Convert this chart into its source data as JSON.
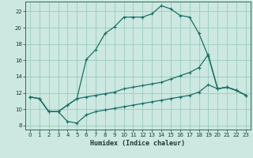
{
  "title": "",
  "xlabel": "Humidex (Indice chaleur)",
  "ylabel": "",
  "background_color": "#cce8e0",
  "grid_color": "#99ccbb",
  "line_color": "#1a7068",
  "xlim": [
    -0.5,
    23.5
  ],
  "ylim": [
    7.5,
    23.2
  ],
  "xticks": [
    0,
    1,
    2,
    3,
    4,
    5,
    6,
    7,
    8,
    9,
    10,
    11,
    12,
    13,
    14,
    15,
    16,
    17,
    18,
    19,
    20,
    21,
    22,
    23
  ],
  "yticks": [
    8,
    10,
    12,
    14,
    16,
    18,
    20,
    22
  ],
  "line1_x": [
    0,
    1,
    2,
    3,
    4,
    5,
    6,
    7,
    8,
    9,
    10,
    11,
    12,
    13,
    14,
    15,
    16,
    17,
    18,
    19,
    20,
    21,
    22,
    23
  ],
  "line1_y": [
    11.5,
    11.3,
    9.7,
    9.7,
    10.5,
    11.3,
    16.1,
    17.3,
    19.3,
    20.1,
    21.3,
    21.3,
    21.3,
    21.7,
    22.7,
    22.3,
    21.5,
    21.3,
    19.3,
    16.5,
    12.5,
    12.7,
    12.3,
    11.7
  ],
  "line2_x": [
    0,
    1,
    2,
    3,
    4,
    5,
    6,
    7,
    8,
    9,
    10,
    11,
    12,
    13,
    14,
    15,
    16,
    17,
    18,
    19,
    20,
    21,
    22,
    23
  ],
  "line2_y": [
    11.5,
    11.3,
    9.7,
    9.7,
    10.5,
    11.3,
    11.5,
    11.7,
    11.9,
    12.1,
    12.5,
    12.7,
    12.9,
    13.1,
    13.3,
    13.7,
    14.1,
    14.5,
    15.1,
    16.7,
    12.5,
    12.7,
    12.3,
    11.7
  ],
  "line3_x": [
    0,
    1,
    2,
    3,
    4,
    5,
    6,
    7,
    8,
    9,
    10,
    11,
    12,
    13,
    14,
    15,
    16,
    17,
    18,
    19,
    20,
    21,
    22,
    23
  ],
  "line3_y": [
    11.5,
    11.3,
    9.7,
    9.7,
    8.5,
    8.3,
    9.3,
    9.7,
    9.9,
    10.1,
    10.3,
    10.5,
    10.7,
    10.9,
    11.1,
    11.3,
    11.5,
    11.7,
    12.1,
    13.0,
    12.5,
    12.7,
    12.3,
    11.7
  ]
}
